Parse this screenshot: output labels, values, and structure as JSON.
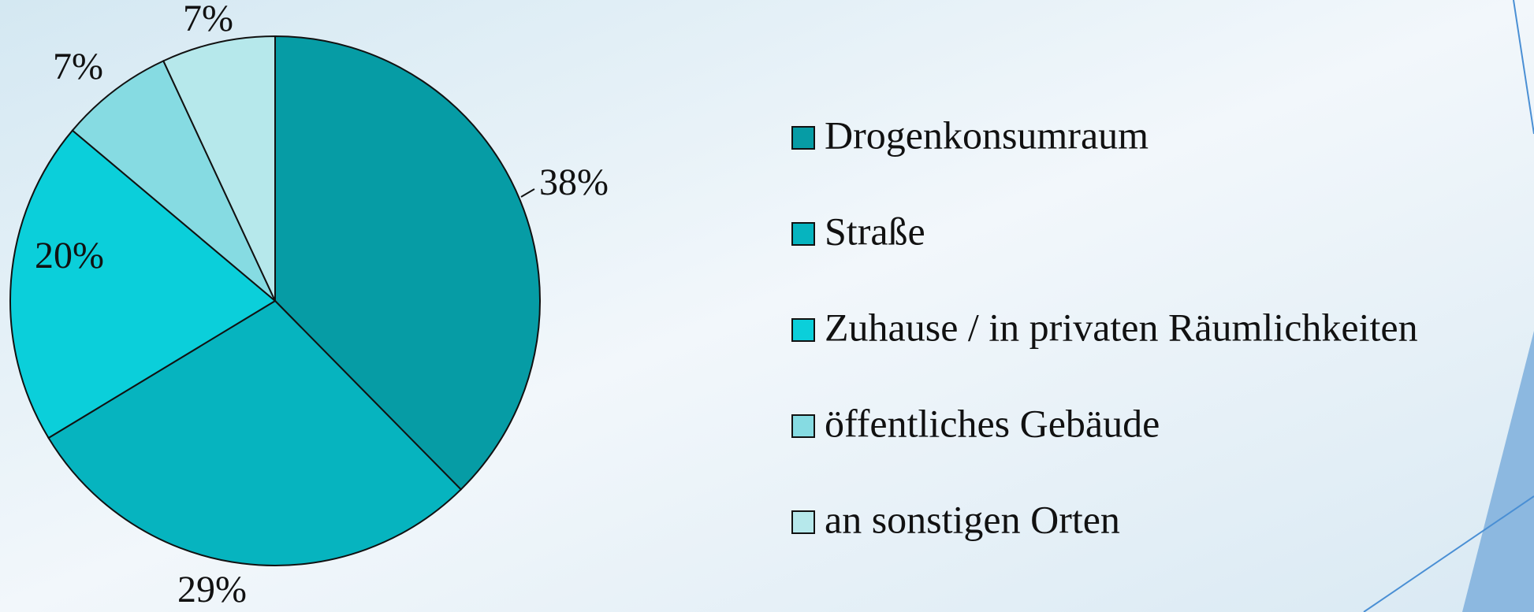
{
  "chart_data": {
    "type": "pie",
    "categories": [
      "Drogenkonsumraum",
      "Straße",
      "Zuhause / in privaten Räumlichkeiten",
      "öffentliches Gebäude",
      "an sonstigen Orten"
    ],
    "values": [
      38,
      29,
      20,
      7,
      7
    ],
    "value_labels": [
      "38%",
      "29%",
      "20%",
      "7%",
      "7%"
    ],
    "colors": [
      "#069ca5",
      "#06b4bf",
      "#0bcfda",
      "#86dbe2",
      "#b6e8eb"
    ],
    "legend": "right"
  }
}
